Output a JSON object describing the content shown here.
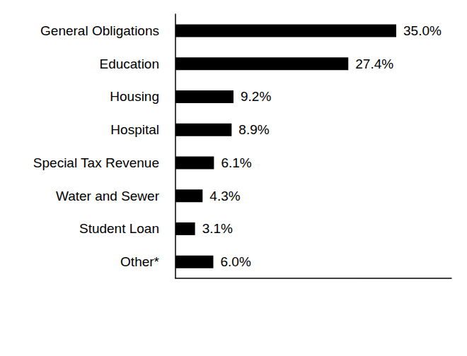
{
  "chart_data": {
    "type": "bar",
    "orientation": "horizontal",
    "categories": [
      "General Obligations",
      "Education",
      "Housing",
      "Hospital",
      "Special Tax Revenue",
      "Water and Sewer",
      "Student Loan",
      "Other*"
    ],
    "values": [
      35.0,
      27.4,
      9.2,
      8.9,
      6.1,
      4.3,
      3.1,
      6.0
    ],
    "value_labels": [
      "35.0%",
      "27.4%",
      "9.2%",
      "8.9%",
      "6.1%",
      "4.3%",
      "3.1%",
      "6.0%"
    ],
    "color": "#000000",
    "xlim": [
      0,
      43.75
    ],
    "xticks": [],
    "grid": false,
    "data_labels": true,
    "tick_labels": "y"
  }
}
